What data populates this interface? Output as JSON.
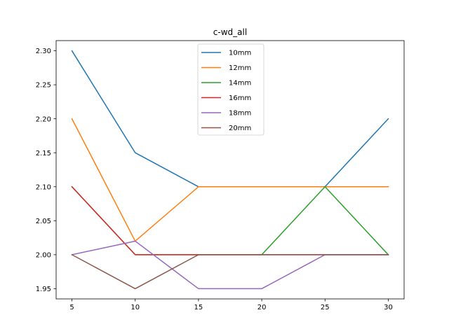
{
  "chart_data": {
    "type": "line",
    "title": "c-wd_all",
    "xlabel": "",
    "ylabel": "",
    "x": [
      5,
      10,
      15,
      20,
      25,
      30
    ],
    "xticks": [
      "5",
      "10",
      "15",
      "20",
      "25",
      "30"
    ],
    "yticks": [
      "1.95",
      "2.00",
      "2.05",
      "2.10",
      "2.15",
      "2.20",
      "2.25",
      "2.30"
    ],
    "xlim": [
      3.75,
      31.25
    ],
    "ylim": [
      1.935,
      2.315
    ],
    "grid": false,
    "legend_position": "top-center",
    "series": [
      {
        "name": "10mm",
        "color": "#1f77b4",
        "values": [
          2.3,
          2.15,
          2.1,
          2.1,
          2.1,
          2.2
        ]
      },
      {
        "name": "12mm",
        "color": "#ff7f0e",
        "values": [
          2.2,
          2.02,
          2.1,
          2.1,
          2.1,
          2.1
        ]
      },
      {
        "name": "14mm",
        "color": "#2ca02c",
        "values": [
          2.1,
          2.0,
          2.0,
          2.0,
          2.1,
          2.0
        ]
      },
      {
        "name": "16mm",
        "color": "#d62728",
        "values": [
          2.1,
          2.0,
          2.0,
          2.0,
          2.0,
          2.0
        ]
      },
      {
        "name": "18mm",
        "color": "#9467bd",
        "values": [
          2.0,
          2.02,
          1.95,
          1.95,
          2.0,
          2.0
        ]
      },
      {
        "name": "20mm",
        "color": "#8c564b",
        "values": [
          2.0,
          1.95,
          2.0,
          2.0,
          2.0,
          2.0
        ]
      }
    ]
  }
}
